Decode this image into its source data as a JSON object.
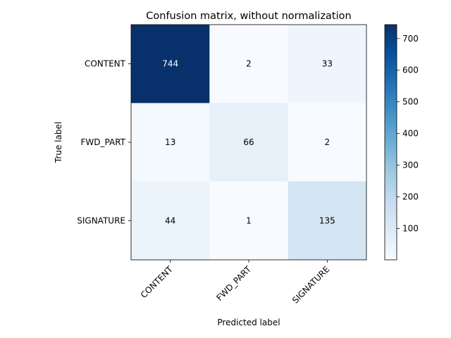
{
  "chart_data": {
    "type": "heatmap",
    "title": "Confusion matrix, without normalization",
    "xlabel": "Predicted label",
    "ylabel": "True label",
    "x_categories": [
      "CONTENT",
      "FWD_PART",
      "SIGNATURE"
    ],
    "y_categories": [
      "CONTENT",
      "FWD_PART",
      "SIGNATURE"
    ],
    "values": [
      [
        744,
        2,
        33
      ],
      [
        13,
        66,
        2
      ],
      [
        44,
        1,
        135
      ]
    ],
    "colormap": "Blues",
    "colorbar": {
      "range": [
        1,
        744
      ],
      "ticks": [
        100,
        200,
        300,
        400,
        500,
        600,
        700
      ]
    }
  }
}
